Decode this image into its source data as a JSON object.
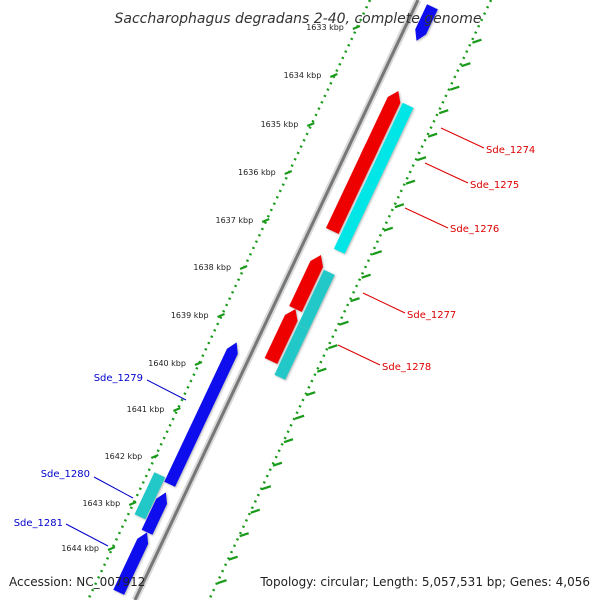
{
  "title": "Saccharophagus degradans 2-40, complete genome",
  "accession_text": "Accession: NC_007912",
  "summary_text": "Topology: circular; Length: 5,057,531 bp; Genes: 4,056",
  "ruler_labels": [
    "1633 kbp",
    "1634 kbp",
    "1635 kbp",
    "1636 kbp",
    "1637 kbp",
    "1638 kbp",
    "1639 kbp",
    "1640 kbp",
    "1641 kbp",
    "1642 kbp",
    "1643 kbp",
    "1644 kbp"
  ],
  "colors": {
    "forward_gene": "#ee0000",
    "forward_gene_alt": "#00e5e5",
    "reverse_gene": "#1010ee",
    "reverse_gene_alt": "#22c8c8",
    "backbone": "#7a7a7a",
    "tick_dots": "#1a9a1a",
    "forward_label": "#dd0000",
    "reverse_label": "#0000cc"
  },
  "genes": [
    {
      "label": "Sde_1274",
      "strand": "forward"
    },
    {
      "label": "Sde_1275",
      "strand": "forward"
    },
    {
      "label": "Sde_1276",
      "strand": "forward"
    },
    {
      "label": "Sde_1277",
      "strand": "forward"
    },
    {
      "label": "Sde_1278",
      "strand": "forward"
    },
    {
      "label": "Sde_1279",
      "strand": "reverse"
    },
    {
      "label": "Sde_1280",
      "strand": "reverse"
    },
    {
      "label": "Sde_1281",
      "strand": "reverse"
    }
  ]
}
